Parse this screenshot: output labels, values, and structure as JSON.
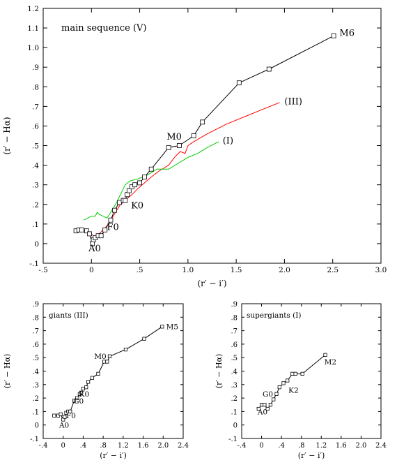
{
  "chart_data": [
    {
      "type": "line",
      "title": "main sequence (V)",
      "xlabel": "(r′ − i′)",
      "ylabel": "(r′ − Hα)",
      "xlim": [
        -0.5,
        3.0
      ],
      "ylim": [
        -0.1,
        1.2
      ],
      "xticks": [
        -0.5,
        0,
        0.5,
        1.0,
        1.5,
        2.0,
        2.5,
        3.0
      ],
      "xtick_labels": [
        "-.5",
        "0",
        ".5",
        "1.0",
        "1.5",
        "2.0",
        "2.5",
        "3.0"
      ],
      "yticks": [
        -0.1,
        0,
        0.1,
        0.2,
        0.3,
        0.4,
        0.5,
        0.6,
        0.7,
        0.8,
        0.9,
        1.0,
        1.1,
        1.2
      ],
      "ytick_labels": [
        "-.1",
        "0",
        ".1",
        ".2",
        ".3",
        ".4",
        ".5",
        ".6",
        ".7",
        ".8",
        ".9",
        "1.0",
        "1.1",
        "1.2"
      ],
      "grid": false,
      "series": [
        {
          "name": "main sequence (V)",
          "color": "#000000",
          "markers": true,
          "x": [
            -0.16,
            -0.13,
            -0.1,
            -0.05,
            -0.02,
            0.01,
            0.02,
            0.04,
            0.07,
            0.1,
            0.14,
            0.2,
            0.24,
            0.29,
            0.33,
            0.35,
            0.37,
            0.39,
            0.42,
            0.45,
            0.5,
            0.55,
            0.62,
            0.8,
            0.91,
            1.06,
            1.15,
            1.53,
            1.84,
            2.51
          ],
          "y": [
            0.065,
            0.07,
            0.07,
            0.065,
            0.05,
            0.0,
            0.02,
            0.03,
            0.04,
            0.04,
            0.07,
            0.12,
            0.17,
            0.21,
            0.22,
            0.22,
            0.25,
            0.27,
            0.29,
            0.3,
            0.31,
            0.34,
            0.38,
            0.49,
            0.5,
            0.55,
            0.62,
            0.82,
            0.89,
            1.06
          ]
        },
        {
          "name": "(III)",
          "color": "#ff0000",
          "markers": false,
          "x": [
            -0.18,
            -0.12,
            -0.08,
            -0.02,
            0.02,
            0.05,
            0.08,
            0.12,
            0.16,
            0.2,
            0.25,
            0.3,
            0.33,
            0.37,
            0.42,
            0.48,
            0.55,
            0.62,
            0.7,
            0.8,
            0.86,
            0.92,
            0.97,
            1.0,
            1.06,
            1.2,
            1.4,
            1.6,
            1.8,
            1.95
          ],
          "y": [
            0.07,
            0.07,
            0.06,
            0.06,
            0.04,
            0.03,
            0.05,
            0.07,
            0.09,
            0.12,
            0.16,
            0.2,
            0.21,
            0.23,
            0.25,
            0.28,
            0.31,
            0.34,
            0.37,
            0.4,
            0.44,
            0.47,
            0.46,
            0.5,
            0.52,
            0.56,
            0.61,
            0.65,
            0.69,
            0.72
          ]
        },
        {
          "name": "(I)",
          "color": "#00cc00",
          "markers": false,
          "x": [
            -0.08,
            -0.04,
            0.0,
            0.04,
            0.06,
            0.08,
            0.12,
            0.16,
            0.2,
            0.25,
            0.3,
            0.35,
            0.4,
            0.48,
            0.58,
            0.68,
            0.8,
            0.9,
            1.0,
            1.1,
            1.2,
            1.32
          ],
          "y": [
            0.12,
            0.13,
            0.14,
            0.14,
            0.16,
            0.15,
            0.14,
            0.13,
            0.16,
            0.2,
            0.25,
            0.3,
            0.32,
            0.33,
            0.35,
            0.38,
            0.38,
            0.41,
            0.44,
            0.46,
            0.49,
            0.52
          ]
        }
      ],
      "annotations": [
        {
          "text": "M6",
          "x": 2.57,
          "y": 1.06
        },
        {
          "text": "(III)",
          "x": 2.0,
          "y": 0.71
        },
        {
          "text": "M0",
          "x": 0.78,
          "y": 0.53
        },
        {
          "text": "(I)",
          "x": 1.36,
          "y": 0.51
        },
        {
          "text": "K0",
          "x": 0.41,
          "y": 0.18
        },
        {
          "text": "F0",
          "x": 0.16,
          "y": 0.07
        },
        {
          "text": "A0",
          "x": -0.03,
          "y": -0.04
        }
      ]
    },
    {
      "type": "line",
      "title": "giants (III)",
      "xlabel": "(r′ − i′)",
      "ylabel": "(r′ − Hα)",
      "xlim": [
        -0.4,
        2.4
      ],
      "ylim": [
        -0.1,
        0.9
      ],
      "xticks": [
        -0.4,
        0,
        0.4,
        0.8,
        1.2,
        1.6,
        2.0,
        2.4
      ],
      "xtick_labels": [
        "-.4",
        "0",
        ".4",
        ".8",
        "1.2",
        "1.6",
        "2.0",
        "2.4"
      ],
      "yticks": [
        -0.1,
        0,
        0.1,
        0.2,
        0.3,
        0.4,
        0.5,
        0.6,
        0.7,
        0.8,
        0.9
      ],
      "ytick_labels": [
        "-.1",
        "0",
        ".1",
        ".2",
        ".3",
        ".4",
        ".5",
        ".6",
        ".7",
        ".8",
        ".9"
      ],
      "grid": false,
      "series": [
        {
          "name": "giants (III)",
          "color": "#000000",
          "markers": true,
          "x": [
            -0.18,
            -0.1,
            -0.05,
            0.0,
            0.03,
            0.06,
            0.1,
            0.14,
            0.22,
            0.28,
            0.33,
            0.36,
            0.4,
            0.46,
            0.5,
            0.58,
            0.7,
            0.82,
            0.88,
            0.93,
            1.25,
            1.62,
            1.98
          ],
          "y": [
            0.07,
            0.07,
            0.08,
            0.04,
            0.06,
            0.09,
            0.1,
            0.1,
            0.18,
            0.2,
            0.23,
            0.24,
            0.27,
            0.28,
            0.32,
            0.35,
            0.38,
            0.47,
            0.47,
            0.51,
            0.56,
            0.64,
            0.73
          ]
        }
      ],
      "annotations": [
        {
          "text": "M5",
          "x": 2.06,
          "y": 0.71
        },
        {
          "text": "M0",
          "x": 0.62,
          "y": 0.49
        },
        {
          "text": "K0",
          "x": 0.32,
          "y": 0.21
        },
        {
          "text": "G0",
          "x": 0.2,
          "y": 0.16
        },
        {
          "text": "F0",
          "x": 0.06,
          "y": 0.05
        },
        {
          "text": "A0",
          "x": -0.08,
          "y": -0.02
        }
      ]
    },
    {
      "type": "line",
      "title": "supergiants (I)",
      "xlabel": "(r′ − i′)",
      "ylabel": "(r′ − Hα)",
      "xlim": [
        -0.4,
        2.4
      ],
      "ylim": [
        -0.1,
        0.9
      ],
      "xticks": [
        -0.4,
        0,
        0.4,
        0.8,
        1.2,
        1.6,
        2.0,
        2.4
      ],
      "xtick_labels": [
        "-.4",
        "0",
        ".4",
        ".8",
        "1.2",
        "1.6",
        "2.0",
        "2.4"
      ],
      "yticks": [
        -0.1,
        0,
        0.1,
        0.2,
        0.3,
        0.4,
        0.5,
        0.6,
        0.7,
        0.8,
        0.9
      ],
      "ytick_labels": [
        "-.1",
        "0",
        ".1",
        ".2",
        ".3",
        ".4",
        ".5",
        ".6",
        ".7",
        ".8",
        ".9"
      ],
      "grid": false,
      "series": [
        {
          "name": "supergiants (I)",
          "color": "#000000",
          "markers": true,
          "x": [
            -0.06,
            0.0,
            0.06,
            0.12,
            0.18,
            0.24,
            0.3,
            0.36,
            0.44,
            0.52,
            0.62,
            0.68,
            0.82,
            1.28
          ],
          "y": [
            0.12,
            0.15,
            0.15,
            0.12,
            0.15,
            0.19,
            0.23,
            0.28,
            0.31,
            0.33,
            0.38,
            0.38,
            0.38,
            0.52
          ]
        }
      ],
      "annotations": [
        {
          "text": "M2",
          "x": 1.26,
          "y": 0.45
        },
        {
          "text": "K2",
          "x": 0.54,
          "y": 0.24
        },
        {
          "text": "G0",
          "x": 0.02,
          "y": 0.21
        },
        {
          "text": "A0",
          "x": -0.08,
          "y": 0.08
        }
      ]
    }
  ]
}
